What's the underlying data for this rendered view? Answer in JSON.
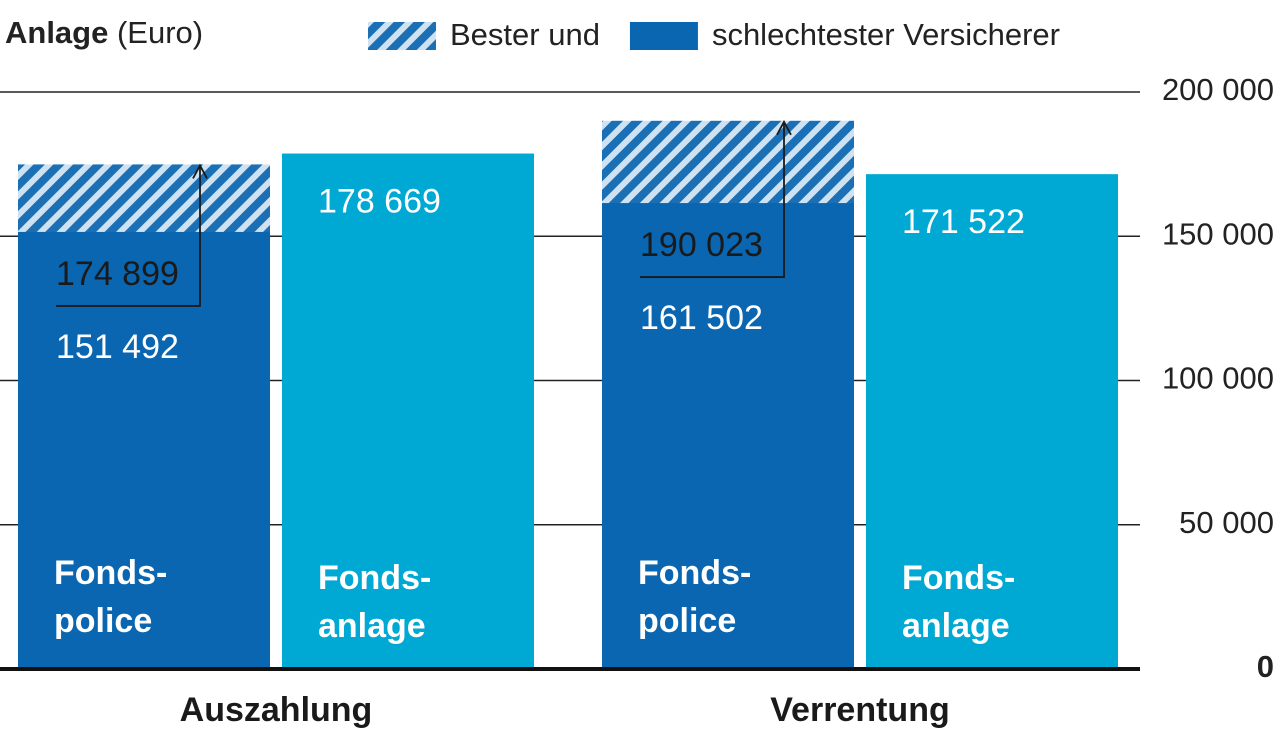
{
  "chart_data": {
    "type": "bar",
    "title": "Anlage",
    "unit": "(Euro)",
    "categories": [
      "Auszahlung",
      "Verrentung"
    ],
    "series": [
      {
        "name": "Bester und",
        "color": "#0a66b0",
        "pattern": "hatch",
        "values": [
          174899,
          190023
        ],
        "value_labels": [
          "174 899",
          "190 023"
        ]
      },
      {
        "name": "schlechtester Versicherer",
        "color": "#0a66b0",
        "values": [
          151492,
          161502
        ],
        "value_labels": [
          "151 492",
          "161 502"
        ],
        "bar_label": [
          "Fonds-",
          "police"
        ]
      },
      {
        "color": "#00a8d4",
        "values": [
          178669,
          171522
        ],
        "value_labels": [
          "178 669",
          "171 522"
        ],
        "bar_label": [
          "Fonds-",
          "anlage"
        ]
      }
    ],
    "ylim": [
      0,
      200000
    ],
    "yticks": [
      0,
      {
        "value": 50000,
        "label": "50 000"
      },
      {
        "value": 100000,
        "label": "100 000"
      },
      {
        "value": 150000,
        "label": "150 000"
      },
      {
        "value": 200000,
        "label": "200 000"
      }
    ],
    "grid": true,
    "y_axis_side": "right"
  }
}
